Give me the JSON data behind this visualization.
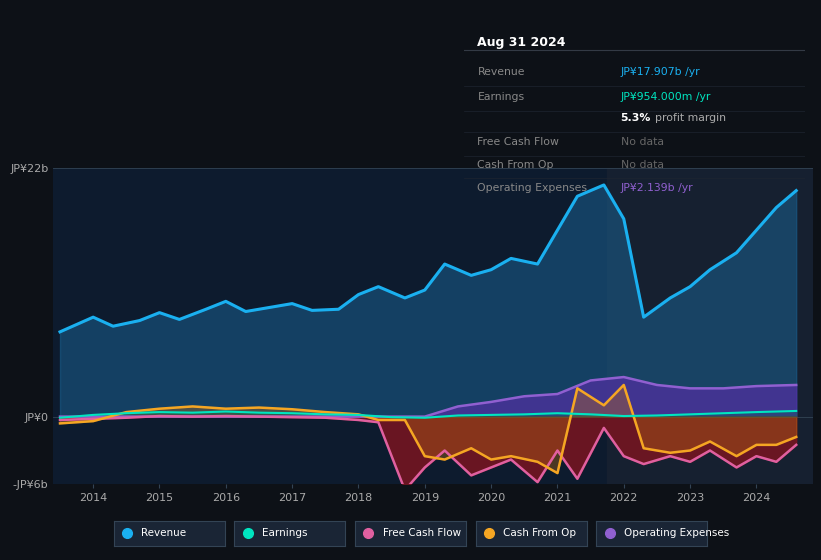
{
  "bg_color": "#0d1117",
  "plot_bg_color": "#0d1b2e",
  "future_bg_color": "#111d2e",
  "ylim_min": -6,
  "ylim_max": 22,
  "xlim_min": 2013.4,
  "xlim_max": 2024.85,
  "future_start": 2021.75,
  "xtick_years": [
    2014,
    2015,
    2016,
    2017,
    2018,
    2019,
    2020,
    2021,
    2022,
    2023,
    2024
  ],
  "revenue_color": "#1ab0f0",
  "revenue_fill_color": "#1a6090",
  "earnings_color": "#00e5c0",
  "fcf_color": "#e060a0",
  "cashop_color": "#f5a623",
  "opex_color": "#9060d0",
  "opex_fill_color": "#5030a0",
  "fcf_fill_color": "#7a1520",
  "revenue_x": [
    2013.5,
    2014.0,
    2014.3,
    2014.7,
    2015.0,
    2015.3,
    2015.7,
    2016.0,
    2016.3,
    2016.7,
    2017.0,
    2017.3,
    2017.7,
    2018.0,
    2018.3,
    2018.7,
    2019.0,
    2019.3,
    2019.7,
    2020.0,
    2020.3,
    2020.7,
    2021.0,
    2021.3,
    2021.7,
    2022.0,
    2022.3,
    2022.7,
    2023.0,
    2023.3,
    2023.7,
    2024.0,
    2024.3,
    2024.6
  ],
  "revenue_y": [
    7.5,
    8.8,
    8.0,
    8.5,
    9.2,
    8.6,
    9.5,
    10.2,
    9.3,
    9.7,
    10.0,
    9.4,
    9.5,
    10.8,
    11.5,
    10.5,
    11.2,
    13.5,
    12.5,
    13.0,
    14.0,
    13.5,
    16.5,
    19.5,
    20.5,
    17.5,
    8.8,
    10.5,
    11.5,
    13.0,
    14.5,
    16.5,
    18.5,
    20.0
  ],
  "earnings_x": [
    2013.5,
    2014.0,
    2014.5,
    2015.0,
    2015.5,
    2016.0,
    2016.5,
    2017.0,
    2017.5,
    2018.0,
    2018.5,
    2019.0,
    2019.5,
    2020.0,
    2020.5,
    2021.0,
    2021.5,
    2022.0,
    2022.5,
    2023.0,
    2023.5,
    2024.0,
    2024.6
  ],
  "earnings_y": [
    -0.1,
    0.15,
    0.3,
    0.4,
    0.35,
    0.45,
    0.35,
    0.3,
    0.2,
    0.15,
    -0.05,
    -0.1,
    0.1,
    0.15,
    0.2,
    0.3,
    0.2,
    0.05,
    0.1,
    0.2,
    0.3,
    0.4,
    0.5
  ],
  "fcf_x": [
    2013.5,
    2014.0,
    2014.5,
    2015.0,
    2015.5,
    2016.0,
    2016.5,
    2017.0,
    2017.5,
    2018.0,
    2018.3,
    2018.7,
    2019.0,
    2019.3,
    2019.7,
    2020.0,
    2020.3,
    2020.7,
    2021.0,
    2021.3,
    2021.7,
    2022.0,
    2022.3,
    2022.7,
    2023.0,
    2023.3,
    2023.7,
    2024.0,
    2024.3,
    2024.6
  ],
  "fcf_y": [
    -0.3,
    -0.2,
    -0.1,
    0.05,
    0.0,
    0.05,
    0.0,
    -0.05,
    -0.1,
    -0.3,
    -0.5,
    -6.5,
    -4.5,
    -3.0,
    -5.2,
    -4.5,
    -3.8,
    -5.8,
    -3.0,
    -5.5,
    -1.0,
    -3.5,
    -4.2,
    -3.5,
    -4.0,
    -3.0,
    -4.5,
    -3.5,
    -4.0,
    -2.5
  ],
  "cashop_x": [
    2013.5,
    2014.0,
    2014.5,
    2015.0,
    2015.5,
    2016.0,
    2016.5,
    2017.0,
    2017.5,
    2018.0,
    2018.3,
    2018.7,
    2019.0,
    2019.3,
    2019.7,
    2020.0,
    2020.3,
    2020.7,
    2021.0,
    2021.3,
    2021.7,
    2022.0,
    2022.3,
    2022.7,
    2023.0,
    2023.3,
    2023.7,
    2024.0,
    2024.3,
    2024.6
  ],
  "cashop_y": [
    -0.6,
    -0.4,
    0.4,
    0.7,
    0.9,
    0.7,
    0.8,
    0.65,
    0.4,
    0.2,
    -0.3,
    -0.3,
    -3.5,
    -3.8,
    -2.8,
    -3.8,
    -3.5,
    -4.0,
    -5.0,
    2.5,
    1.0,
    2.8,
    -2.8,
    -3.2,
    -3.0,
    -2.2,
    -3.5,
    -2.5,
    -2.5,
    -1.8
  ],
  "opex_x": [
    2013.5,
    2014.0,
    2014.5,
    2015.0,
    2015.5,
    2016.0,
    2016.5,
    2017.0,
    2017.5,
    2018.0,
    2018.5,
    2019.0,
    2019.5,
    2020.0,
    2020.5,
    2021.0,
    2021.5,
    2022.0,
    2022.5,
    2023.0,
    2023.5,
    2024.0,
    2024.6
  ],
  "opex_y": [
    0.0,
    0.0,
    0.0,
    0.0,
    0.0,
    0.0,
    0.0,
    0.0,
    0.0,
    0.0,
    0.0,
    0.0,
    0.9,
    1.3,
    1.8,
    2.0,
    3.2,
    3.5,
    2.8,
    2.5,
    2.5,
    2.7,
    2.8
  ],
  "legend_items": [
    {
      "label": "Revenue",
      "color": "#1ab0f0"
    },
    {
      "label": "Earnings",
      "color": "#00e5c0"
    },
    {
      "label": "Free Cash Flow",
      "color": "#e060a0"
    },
    {
      "label": "Cash From Op",
      "color": "#f5a623"
    },
    {
      "label": "Operating Expenses",
      "color": "#9060d0"
    }
  ],
  "tooltip": {
    "title": "Aug 31 2024",
    "rows": [
      {
        "label": "Revenue",
        "value": "JP¥17.907b /yr",
        "vcolor": "#1ab0f0",
        "lcolor": "#888888"
      },
      {
        "label": "Earnings",
        "value": "JP¥954.000m /yr",
        "vcolor": "#00e5c0",
        "lcolor": "#888888"
      },
      {
        "label": "",
        "value": "5.3% profit margin",
        "vcolor": "#cccccc",
        "lcolor": "",
        "bold_part": "5.3%"
      },
      {
        "label": "Free Cash Flow",
        "value": "No data",
        "vcolor": "#666666",
        "lcolor": "#888888"
      },
      {
        "label": "Cash From Op",
        "value": "No data",
        "vcolor": "#666666",
        "lcolor": "#888888"
      },
      {
        "label": "Operating Expenses",
        "value": "JP¥2.139b /yr",
        "vcolor": "#9060d0",
        "lcolor": "#888888"
      }
    ]
  }
}
